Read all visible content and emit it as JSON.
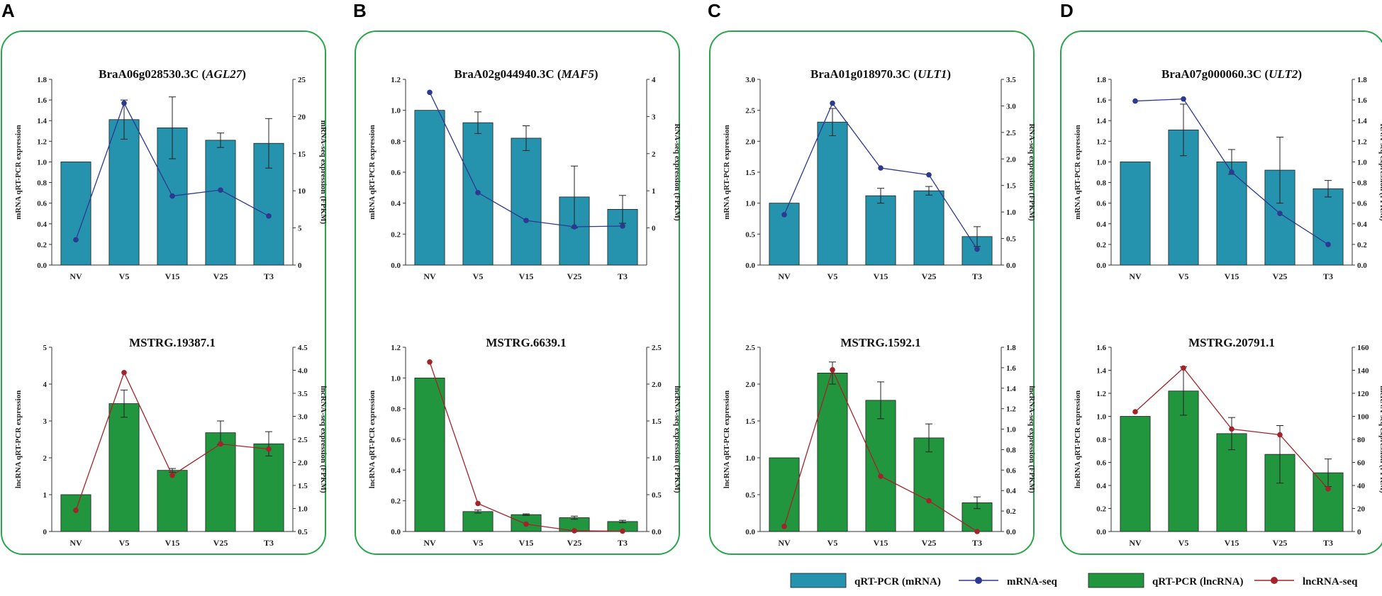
{
  "colors": {
    "mrna_bar": "#2593ad",
    "mrna_line": "#2b3990",
    "lnc_bar": "#22963f",
    "lnc_line": "#a3232a",
    "panel_border": "#2aa64a"
  },
  "legend": [
    {
      "kind": "bar",
      "color": "#2593ad",
      "label": "qRT-PCR (mRNA)"
    },
    {
      "kind": "line",
      "color": "#2b3990",
      "label": "mRNA-seq"
    },
    {
      "kind": "bar",
      "color": "#22963f",
      "label": "qRT-PCR (lncRNA)"
    },
    {
      "kind": "line",
      "color": "#a3232a",
      "label": "lncRNA-seq"
    }
  ],
  "chart_data": [
    {
      "panel": "A",
      "position": "top",
      "type": "bar+line",
      "title": "BraA06g028530.3C (",
      "gene": "AGL27",
      "title_end": ")",
      "categories": [
        "NV",
        "V5",
        "V15",
        "V25",
        "T3"
      ],
      "bar_values": [
        1.0,
        1.41,
        1.33,
        1.21,
        1.18
      ],
      "bar_errors": [
        0,
        0.19,
        0.3,
        0.07,
        0.24
      ],
      "line_values": [
        3.4,
        21.8,
        9.3,
        10.1,
        6.6
      ],
      "ylabel": "mRNA qRT-PCR expression",
      "y2label": "mRNA-seq expression (FPKM)",
      "ylim": [
        0,
        1.8
      ],
      "yticks": [
        "0.0",
        "0.2",
        "0.4",
        "0.6",
        "0.8",
        "1.0",
        "1.2",
        "1.4",
        "1.6",
        "1.8"
      ],
      "y2lim": [
        0,
        25
      ],
      "y2ticks": [
        "0",
        "5",
        "10",
        "15",
        "20",
        "25"
      ]
    },
    {
      "panel": "A",
      "position": "bottom",
      "type": "bar+line",
      "title": "MSTRG.19387.1",
      "gene": "",
      "title_end": "",
      "categories": [
        "NV",
        "V5",
        "V15",
        "V25",
        "T3"
      ],
      "bar_values": [
        1.0,
        3.47,
        1.66,
        2.68,
        2.38
      ],
      "bar_errors": [
        0,
        0.37,
        0.05,
        0.32,
        0.33
      ],
      "line_values": [
        0.96,
        3.95,
        1.72,
        2.4,
        2.29
      ],
      "ylabel": "lncRNA qRT-PCR expression",
      "y2label": "lncRNA-seq expression (FPKM)",
      "ylim": [
        0,
        5
      ],
      "yticks": [
        "0",
        "1",
        "2",
        "3",
        "4",
        "5"
      ],
      "y2lim": [
        0.5,
        4.5
      ],
      "y2ticks": [
        "0.5",
        "1.0",
        "1.5",
        "2.0",
        "2.5",
        "3.0",
        "3.5",
        "4.0",
        "4.5"
      ]
    },
    {
      "panel": "B",
      "position": "top",
      "type": "bar+line",
      "title": "BraA02g044940.3C (",
      "gene": "MAF5",
      "title_end": ")",
      "categories": [
        "NV",
        "V5",
        "V15",
        "V25",
        "T3"
      ],
      "bar_values": [
        1.0,
        0.92,
        0.82,
        0.44,
        0.36
      ],
      "bar_errors": [
        0,
        0.07,
        0.08,
        0.2,
        0.09
      ],
      "line_values": [
        3.65,
        0.95,
        0.2,
        0.03,
        0.05
      ],
      "ylabel": "mRNA qRT-PCR expression",
      "y2label": "RNA-seq expression (FPKM)",
      "ylim": [
        0,
        1.2
      ],
      "yticks": [
        "0.0",
        "0.2",
        "0.4",
        "0.6",
        "0.8",
        "1.0",
        "1.2"
      ],
      "y2lim": [
        -1,
        4
      ],
      "y2ticks": [
        "",
        "0",
        "1",
        "2",
        "3",
        "4"
      ]
    },
    {
      "panel": "B",
      "position": "bottom",
      "type": "bar+line",
      "title": "MSTRG.6639.1",
      "gene": "",
      "title_end": "",
      "categories": [
        "NV",
        "V5",
        "V15",
        "V25",
        "T3"
      ],
      "bar_values": [
        1.0,
        0.13,
        0.11,
        0.09,
        0.065
      ],
      "bar_errors": [
        0,
        0.01,
        0.005,
        0.01,
        0.008
      ],
      "line_values": [
        2.3,
        0.38,
        0.1,
        0.01,
        0.005
      ],
      "ylabel": "lncRNA qRT-PCR expression",
      "y2label": "lncRNA-seq expression (FPKM)",
      "ylim": [
        0,
        1.2
      ],
      "yticks": [
        "0.0",
        "0.2",
        "0.4",
        "0.6",
        "0.8",
        "1.0",
        "1.2"
      ],
      "y2lim": [
        0,
        2.5
      ],
      "y2ticks": [
        "0.0",
        "0.5",
        "1.0",
        "1.5",
        "2.0",
        "2.5"
      ]
    },
    {
      "panel": "C",
      "position": "top",
      "type": "bar+line",
      "title": "BraA01g018970.3C (",
      "gene": "ULT1",
      "title_end": ")",
      "categories": [
        "NV",
        "V5",
        "V15",
        "V25",
        "T3"
      ],
      "bar_values": [
        1.0,
        2.31,
        1.12,
        1.2,
        0.46
      ],
      "bar_errors": [
        0,
        0.22,
        0.12,
        0.07,
        0.16
      ],
      "line_values": [
        0.95,
        3.05,
        1.83,
        1.7,
        0.3
      ],
      "ylabel": "mRNA qRT-PCR expression",
      "y2label": "RNA-seq expression (FPKM)",
      "ylim": [
        0,
        3.0
      ],
      "yticks": [
        "0.0",
        "0.5",
        "1.0",
        "1.5",
        "2.0",
        "2.5",
        "3.0"
      ],
      "y2lim": [
        0,
        3.5
      ],
      "y2ticks": [
        "0.0",
        "0.5",
        "1.0",
        "1.5",
        "2.0",
        "2.5",
        "3.0",
        "3.5"
      ]
    },
    {
      "panel": "C",
      "position": "bottom",
      "type": "bar+line",
      "title": "MSTRG.1592.1",
      "gene": "",
      "title_end": "",
      "categories": [
        "NV",
        "V5",
        "V15",
        "V25",
        "T3"
      ],
      "bar_values": [
        1.0,
        2.15,
        1.78,
        1.27,
        0.39
      ],
      "bar_errors": [
        0,
        0.15,
        0.25,
        0.19,
        0.08
      ],
      "line_values": [
        0.05,
        1.58,
        0.54,
        0.3,
        0.0
      ],
      "ylabel": "lncRNA qRT-PCR expression",
      "y2label": "lncRNA-seq expression (FPKM)",
      "ylim": [
        0,
        2.5
      ],
      "yticks": [
        "0.0",
        "0.5",
        "1.0",
        "1.5",
        "2.0",
        "2.5"
      ],
      "y2lim": [
        0,
        1.8
      ],
      "y2ticks": [
        "0.0",
        "0.2",
        "0.4",
        "0.6",
        "0.8",
        "1.0",
        "1.2",
        "1.4",
        "1.6",
        "1.8"
      ]
    },
    {
      "panel": "D",
      "position": "top",
      "type": "bar+line",
      "title": "BraA07g000060.3C (",
      "gene": "ULT2",
      "title_end": ")",
      "categories": [
        "NV",
        "V5",
        "V15",
        "V25",
        "T3"
      ],
      "bar_values": [
        1.0,
        1.31,
        1.0,
        0.92,
        0.74
      ],
      "bar_errors": [
        0,
        0.25,
        0.12,
        0.32,
        0.08
      ],
      "line_values": [
        1.59,
        1.61,
        0.9,
        0.5,
        0.2
      ],
      "ylabel": "mRNA qRT-PCR expression",
      "y2label": "RNA-seq expression (FPKM)",
      "ylim": [
        0,
        1.8
      ],
      "yticks": [
        "0.0",
        "0.2",
        "0.4",
        "0.6",
        "0.8",
        "1.0",
        "1.2",
        "1.4",
        "1.6",
        "1.8"
      ],
      "y2lim": [
        0,
        1.8
      ],
      "y2ticks": [
        "0.0",
        "0.2",
        "0.4",
        "0.6",
        "0.8",
        "1.0",
        "1.2",
        "1.4",
        "1.6",
        "1.8"
      ]
    },
    {
      "panel": "D",
      "position": "bottom",
      "type": "bar+line",
      "title": "MSTRG.20791.1",
      "gene": "",
      "title_end": "",
      "categories": [
        "NV",
        "V5",
        "V15",
        "V25",
        "T3"
      ],
      "bar_values": [
        1.0,
        1.22,
        0.85,
        0.67,
        0.51
      ],
      "bar_errors": [
        0,
        0.21,
        0.14,
        0.25,
        0.12
      ],
      "line_values": [
        104,
        142,
        89,
        84,
        37
      ],
      "ylabel": "lncRNA qRT-PCR expression",
      "y2label": "lncRNA-seq expression (FPKM)",
      "ylim": [
        0,
        1.6
      ],
      "yticks": [
        "0.0",
        "0.2",
        "0.4",
        "0.6",
        "0.8",
        "1.0",
        "1.2",
        "1.4",
        "1.6"
      ],
      "y2lim": [
        0,
        160
      ],
      "y2ticks": [
        "0",
        "20",
        "40",
        "60",
        "80",
        "100",
        "120",
        "140",
        "160"
      ]
    }
  ]
}
